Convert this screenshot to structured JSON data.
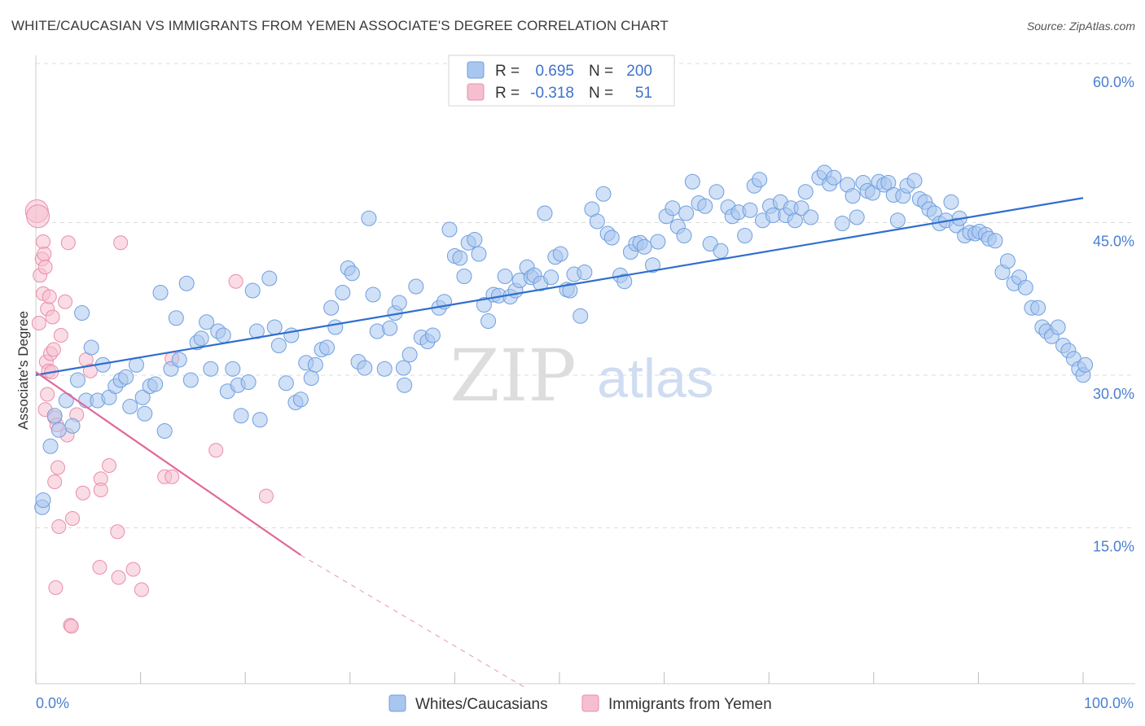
{
  "title": "WHITE/CAUCASIAN VS IMMIGRANTS FROM YEMEN ASSOCIATE'S DEGREE CORRELATION CHART",
  "source": "Source: ZipAtlas.com",
  "watermark": {
    "zip": "ZIP",
    "atlas": "atlas"
  },
  "colors": {
    "blue_fill": "#a9c6ee",
    "blue_stroke": "#6f9fe0",
    "blue_line": "#2f6fce",
    "pink_fill": "#f6bfd0",
    "pink_stroke": "#ea8eac",
    "pink_line": "#e0689a",
    "tick_text": "#4a7fd0",
    "grid": "#dcdcdc"
  },
  "legend": {
    "row1": {
      "r_label": "R =",
      "r_value": "0.695",
      "n_label": "N =",
      "n_value": "200"
    },
    "row2": {
      "r_label": "R =",
      "r_value": "-0.318",
      "n_label": "N =",
      "n_value": "51"
    }
  },
  "chart_data": {
    "type": "scatter",
    "xlabel": "",
    "ylabel": "Associate's Degree",
    "xlim": [
      0,
      100
    ],
    "ylim": [
      0,
      63
    ],
    "x_tick_labels": [
      "0.0%",
      "100.0%"
    ],
    "y_ticks": [
      15,
      30,
      45,
      60
    ],
    "y_tick_labels": [
      "15.0%",
      "30.0%",
      "45.0%",
      "60.0%"
    ],
    "grid": "dashed horizontal",
    "legend_position": "top-center and bottom",
    "series": [
      {
        "name": "Whites/Caucasians",
        "color": "#a9c6ee",
        "trend": {
          "x": [
            0,
            100
          ],
          "y": [
            30.9,
            48.3
          ]
        },
        "points": [
          [
            0.6,
            17.9
          ],
          [
            0.7,
            18.6
          ],
          [
            1.4,
            23.9
          ],
          [
            1.8,
            26.9
          ],
          [
            2.2,
            25.5
          ],
          [
            2.9,
            28.4
          ],
          [
            3.5,
            25.9
          ],
          [
            4.0,
            30.4
          ],
          [
            4.4,
            37.0
          ],
          [
            4.8,
            28.4
          ],
          [
            5.3,
            33.6
          ],
          [
            5.9,
            28.4
          ],
          [
            6.4,
            31.9
          ],
          [
            7.0,
            28.7
          ],
          [
            7.6,
            29.8
          ],
          [
            8.1,
            30.4
          ],
          [
            8.6,
            30.7
          ],
          [
            9.0,
            27.8
          ],
          [
            9.6,
            31.9
          ],
          [
            10.2,
            28.7
          ],
          [
            10.4,
            27.1
          ],
          [
            10.9,
            29.8
          ],
          [
            11.4,
            30.0
          ],
          [
            11.9,
            39.0
          ],
          [
            12.3,
            25.4
          ],
          [
            12.9,
            31.5
          ],
          [
            13.4,
            36.5
          ],
          [
            13.7,
            32.4
          ],
          [
            14.4,
            39.9
          ],
          [
            14.8,
            30.4
          ],
          [
            15.4,
            34.1
          ],
          [
            15.8,
            34.5
          ],
          [
            16.3,
            36.1
          ],
          [
            16.7,
            31.5
          ],
          [
            17.4,
            35.2
          ],
          [
            17.9,
            34.8
          ],
          [
            18.3,
            29.3
          ],
          [
            18.8,
            31.5
          ],
          [
            19.3,
            29.9
          ],
          [
            19.6,
            26.9
          ],
          [
            20.3,
            30.2
          ],
          [
            20.7,
            39.2
          ],
          [
            21.1,
            35.2
          ],
          [
            21.4,
            26.5
          ],
          [
            22.3,
            40.4
          ],
          [
            22.8,
            35.6
          ],
          [
            23.2,
            33.8
          ],
          [
            23.9,
            30.1
          ],
          [
            24.4,
            34.8
          ],
          [
            24.8,
            28.2
          ],
          [
            25.3,
            28.5
          ],
          [
            25.8,
            32.1
          ],
          [
            26.3,
            30.6
          ],
          [
            26.7,
            31.9
          ],
          [
            27.3,
            33.4
          ],
          [
            27.8,
            33.6
          ],
          [
            28.2,
            37.5
          ],
          [
            28.6,
            35.6
          ],
          [
            29.3,
            39.0
          ],
          [
            29.8,
            41.4
          ],
          [
            30.2,
            40.9
          ],
          [
            30.8,
            32.2
          ],
          [
            31.4,
            31.6
          ],
          [
            31.8,
            46.3
          ],
          [
            32.2,
            38.8
          ],
          [
            32.6,
            35.2
          ],
          [
            33.3,
            31.5
          ],
          [
            33.8,
            35.5
          ],
          [
            34.3,
            37.0
          ],
          [
            34.7,
            38.0
          ],
          [
            35.1,
            31.6
          ],
          [
            35.2,
            29.9
          ],
          [
            35.7,
            32.9
          ],
          [
            36.3,
            39.6
          ],
          [
            36.8,
            34.6
          ],
          [
            37.4,
            34.2
          ],
          [
            37.9,
            34.8
          ],
          [
            38.5,
            37.5
          ],
          [
            39.0,
            38.1
          ],
          [
            39.5,
            45.2
          ],
          [
            40.0,
            42.6
          ],
          [
            40.5,
            42.4
          ],
          [
            40.9,
            40.6
          ],
          [
            41.3,
            43.9
          ],
          [
            41.9,
            44.2
          ],
          [
            42.3,
            42.8
          ],
          [
            42.8,
            37.8
          ],
          [
            43.2,
            36.2
          ],
          [
            43.7,
            38.8
          ],
          [
            44.2,
            38.7
          ],
          [
            44.8,
            40.6
          ],
          [
            45.3,
            38.6
          ],
          [
            45.8,
            39.2
          ],
          [
            46.2,
            40.2
          ],
          [
            46.9,
            41.5
          ],
          [
            47.3,
            40.5
          ],
          [
            47.6,
            40.7
          ],
          [
            48.2,
            39.9
          ],
          [
            48.6,
            46.8
          ],
          [
            49.2,
            40.5
          ],
          [
            49.6,
            42.5
          ],
          [
            50.1,
            42.8
          ],
          [
            50.7,
            39.3
          ],
          [
            51.0,
            39.2
          ],
          [
            51.4,
            40.8
          ],
          [
            52.0,
            36.7
          ],
          [
            52.4,
            41.0
          ],
          [
            53.1,
            47.2
          ],
          [
            53.6,
            46.0
          ],
          [
            54.2,
            48.7
          ],
          [
            54.6,
            44.8
          ],
          [
            55.0,
            44.4
          ],
          [
            55.8,
            40.7
          ],
          [
            56.2,
            40.1
          ],
          [
            56.8,
            43.0
          ],
          [
            57.3,
            43.8
          ],
          [
            57.7,
            43.9
          ],
          [
            58.1,
            43.5
          ],
          [
            58.9,
            41.7
          ],
          [
            59.4,
            44.0
          ],
          [
            60.2,
            46.5
          ],
          [
            60.8,
            47.3
          ],
          [
            61.3,
            45.5
          ],
          [
            61.9,
            44.6
          ],
          [
            62.1,
            46.8
          ],
          [
            62.7,
            49.9
          ],
          [
            63.3,
            47.8
          ],
          [
            63.9,
            47.5
          ],
          [
            64.4,
            43.8
          ],
          [
            65.0,
            48.9
          ],
          [
            65.4,
            43.1
          ],
          [
            66.1,
            47.4
          ],
          [
            66.5,
            46.5
          ],
          [
            67.1,
            46.9
          ],
          [
            67.7,
            44.6
          ],
          [
            68.2,
            47.1
          ],
          [
            68.6,
            49.5
          ],
          [
            69.1,
            50.1
          ],
          [
            69.4,
            46.1
          ],
          [
            70.1,
            47.5
          ],
          [
            70.4,
            46.6
          ],
          [
            71.1,
            47.9
          ],
          [
            71.6,
            46.6
          ],
          [
            72.1,
            47.3
          ],
          [
            72.5,
            46.1
          ],
          [
            73.1,
            47.3
          ],
          [
            73.5,
            48.9
          ],
          [
            74.0,
            46.4
          ],
          [
            74.8,
            50.3
          ],
          [
            75.3,
            50.8
          ],
          [
            75.8,
            49.7
          ],
          [
            76.2,
            50.3
          ],
          [
            77.0,
            45.8
          ],
          [
            77.5,
            49.6
          ],
          [
            78.0,
            48.5
          ],
          [
            78.4,
            46.4
          ],
          [
            79.0,
            49.8
          ],
          [
            79.4,
            49.0
          ],
          [
            79.9,
            48.8
          ],
          [
            80.5,
            49.9
          ],
          [
            81.0,
            49.6
          ],
          [
            81.4,
            49.8
          ],
          [
            81.9,
            48.6
          ],
          [
            82.3,
            46.1
          ],
          [
            82.8,
            48.5
          ],
          [
            83.2,
            49.5
          ],
          [
            83.9,
            50.0
          ],
          [
            84.4,
            48.2
          ],
          [
            84.9,
            47.9
          ],
          [
            85.3,
            47.2
          ],
          [
            85.8,
            46.8
          ],
          [
            86.3,
            45.8
          ],
          [
            86.9,
            46.1
          ],
          [
            87.4,
            47.9
          ],
          [
            87.9,
            45.6
          ],
          [
            88.2,
            46.3
          ],
          [
            88.7,
            44.6
          ],
          [
            89.2,
            44.9
          ],
          [
            89.7,
            44.8
          ],
          [
            90.1,
            45.0
          ],
          [
            90.7,
            44.7
          ],
          [
            91.0,
            44.3
          ],
          [
            91.6,
            44.1
          ],
          [
            92.3,
            41.0
          ],
          [
            92.8,
            42.1
          ],
          [
            93.4,
            39.9
          ],
          [
            93.9,
            40.5
          ],
          [
            94.5,
            39.5
          ],
          [
            95.1,
            37.5
          ],
          [
            95.7,
            37.5
          ],
          [
            96.1,
            35.6
          ],
          [
            96.5,
            35.2
          ],
          [
            97.0,
            34.7
          ],
          [
            97.6,
            35.6
          ],
          [
            98.1,
            33.8
          ],
          [
            98.6,
            33.3
          ],
          [
            99.1,
            32.5
          ],
          [
            99.6,
            31.5
          ],
          [
            100.0,
            30.9
          ],
          [
            100.2,
            31.9
          ]
        ]
      },
      {
        "name": "Immigrants from Yemen",
        "color": "#f6bfd0",
        "trend": {
          "x": [
            0,
            25.3
          ],
          "y": [
            31.2,
            13.2
          ]
        },
        "trend_dashed": {
          "x": [
            25.3,
            47
          ],
          "y": [
            13.2,
            0
          ]
        },
        "points": [
          [
            0.1,
            47.0
          ],
          [
            0.2,
            46.5
          ],
          [
            0.3,
            36.0
          ],
          [
            0.4,
            40.7
          ],
          [
            0.6,
            42.3
          ],
          [
            0.7,
            38.9
          ],
          [
            0.7,
            44.0
          ],
          [
            0.8,
            42.8
          ],
          [
            0.9,
            41.5
          ],
          [
            0.9,
            27.5
          ],
          [
            1.0,
            32.2
          ],
          [
            1.1,
            37.4
          ],
          [
            1.1,
            29.0
          ],
          [
            1.2,
            31.3
          ],
          [
            1.3,
            38.6
          ],
          [
            1.4,
            33.0
          ],
          [
            1.5,
            31.2
          ],
          [
            1.6,
            36.6
          ],
          [
            1.7,
            33.4
          ],
          [
            1.8,
            20.4
          ],
          [
            1.8,
            26.7
          ],
          [
            1.9,
            10.0
          ],
          [
            2.0,
            26.0
          ],
          [
            2.1,
            21.8
          ],
          [
            2.2,
            16.0
          ],
          [
            2.4,
            34.8
          ],
          [
            2.8,
            38.1
          ],
          [
            3.0,
            25.0
          ],
          [
            3.1,
            43.9
          ],
          [
            3.3,
            6.3
          ],
          [
            3.4,
            6.2
          ],
          [
            3.5,
            16.8
          ],
          [
            3.9,
            27.0
          ],
          [
            4.5,
            19.3
          ],
          [
            4.8,
            32.4
          ],
          [
            5.2,
            31.3
          ],
          [
            6.1,
            12.0
          ],
          [
            6.2,
            20.7
          ],
          [
            6.2,
            19.6
          ],
          [
            7.0,
            22.0
          ],
          [
            7.8,
            15.5
          ],
          [
            7.9,
            11.0
          ],
          [
            8.1,
            43.9
          ],
          [
            9.3,
            11.8
          ],
          [
            10.1,
            9.8
          ],
          [
            12.3,
            20.9
          ],
          [
            13.0,
            20.9
          ],
          [
            13.0,
            32.5
          ],
          [
            17.2,
            23.5
          ],
          [
            19.1,
            40.1
          ],
          [
            22.0,
            19.0
          ]
        ]
      }
    ]
  },
  "bottom_legend": [
    "Whites/Caucasians",
    "Immigrants from Yemen"
  ]
}
